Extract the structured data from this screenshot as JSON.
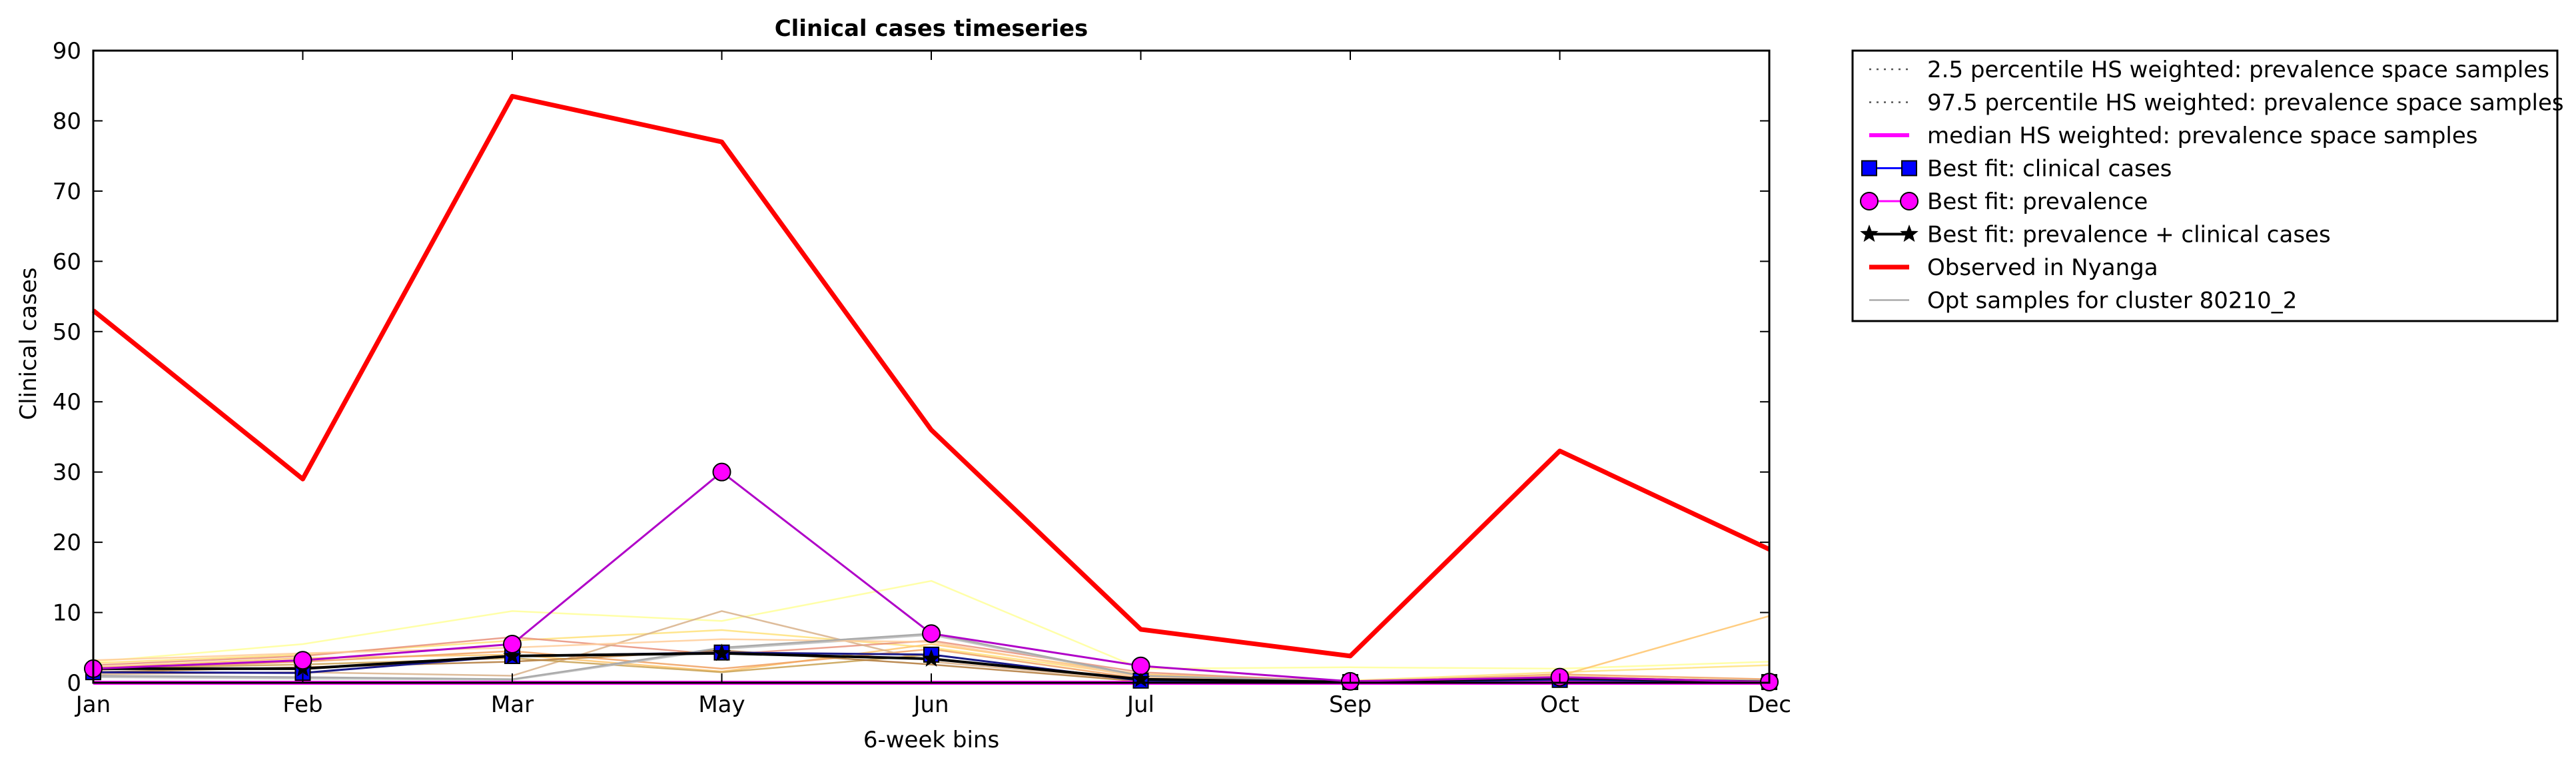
{
  "chart_data": {
    "type": "line",
    "title": "Clinical cases timeseries",
    "xlabel": "6-week bins",
    "ylabel": "Clinical cases",
    "categories": [
      "Jan",
      "Feb",
      "Mar",
      "May",
      "Jun",
      "Jul",
      "Sep",
      "Oct",
      "Dec"
    ],
    "yticks": [
      "0",
      "10",
      "20",
      "30",
      "40",
      "50",
      "60",
      "70",
      "80",
      "90"
    ],
    "ylim": [
      0,
      90
    ],
    "grid": false,
    "legend_position": "outside-top-right",
    "series": [
      {
        "name": "2.5 percentile HS weighted: prevalence space samples",
        "style": "dotted",
        "color": "#555555",
        "values": [
          0,
          0,
          0,
          0,
          0,
          0,
          0,
          0,
          0
        ]
      },
      {
        "name": "97.5 percentile HS weighted: prevalence space samples",
        "style": "dotted",
        "color": "#555555",
        "values": [
          0,
          0,
          0,
          0,
          0,
          0,
          0,
          0,
          0
        ]
      },
      {
        "name": "median HS weighted: prevalence space samples",
        "style": "solid",
        "color": "#ff00ff",
        "values": [
          0,
          0,
          0,
          0,
          0,
          0,
          0,
          0,
          0
        ]
      },
      {
        "name": "Best fit: clinical cases",
        "style": "square",
        "color": "#0000ff",
        "values": [
          1.5,
          1.4,
          3.8,
          4.3,
          4.0,
          0.3,
          0.1,
          0.4,
          0.1
        ]
      },
      {
        "name": "Best fit: prevalence",
        "style": "circle",
        "color": "#ff00ff",
        "values": [
          2.0,
          3.2,
          5.5,
          30.0,
          7.0,
          2.4,
          0.2,
          0.8,
          0.1
        ]
      },
      {
        "name": "Best fit: prevalence + clinical cases",
        "style": "star",
        "color": "#000000",
        "values": [
          2.0,
          2.0,
          3.8,
          4.2,
          3.4,
          0.5,
          0.1,
          0.7,
          0.1
        ]
      },
      {
        "name": "Observed in Nyanga",
        "style": "thick",
        "color": "#ff0000",
        "values": [
          53,
          29,
          83.5,
          77,
          36,
          7.6,
          3.8,
          33,
          19
        ]
      },
      {
        "name": "Opt samples for cluster 80210_2",
        "style": "thin",
        "color": "#aaaaaa",
        "values": [
          1.0,
          0.8,
          0.5,
          5.0,
          7.0,
          1.0,
          0.2,
          0.5,
          0.3
        ]
      }
    ],
    "sample_lines": [
      {
        "color": "#ffff99",
        "values": [
          3.0,
          5.5,
          10.2,
          8.8,
          14.5,
          2.0,
          2.2,
          2.0,
          3.0
        ]
      },
      {
        "color": "#ffe27a",
        "values": [
          2.8,
          4.0,
          6.0,
          7.5,
          5.0,
          1.0,
          0.3,
          1.5,
          2.5
        ]
      },
      {
        "color": "#ffc46b",
        "values": [
          2.2,
          3.5,
          4.0,
          1.6,
          5.5,
          1.2,
          0.2,
          1.0,
          9.5
        ]
      },
      {
        "color": "#f0a060",
        "values": [
          1.8,
          3.0,
          4.5,
          2.0,
          4.8,
          0.6,
          0.1,
          1.2,
          0.5
        ]
      },
      {
        "color": "#e8907a",
        "values": [
          2.5,
          3.8,
          6.5,
          4.0,
          6.0,
          1.5,
          0.1,
          0.5,
          0.2
        ]
      },
      {
        "color": "#d8b088",
        "values": [
          1.2,
          1.5,
          1.0,
          10.2,
          3.0,
          0.4,
          0.1,
          0.2,
          0.1
        ]
      },
      {
        "color": "#c8a050",
        "values": [
          2.0,
          2.6,
          3.5,
          1.5,
          4.0,
          0.3,
          0.0,
          0.3,
          0.0
        ]
      },
      {
        "color": "#bbbbbb",
        "values": [
          0.8,
          0.6,
          0.4,
          4.8,
          6.8,
          0.9,
          0.2,
          0.5,
          0.3
        ]
      },
      {
        "color": "#b07838",
        "values": [
          1.5,
          2.2,
          3.0,
          4.6,
          2.6,
          0.2,
          0.0,
          0.6,
          0.0
        ]
      },
      {
        "color": "#ffcc99",
        "values": [
          3.2,
          4.2,
          5.0,
          6.2,
          5.8,
          0.8,
          0.1,
          1.0,
          0.2
        ]
      }
    ]
  }
}
